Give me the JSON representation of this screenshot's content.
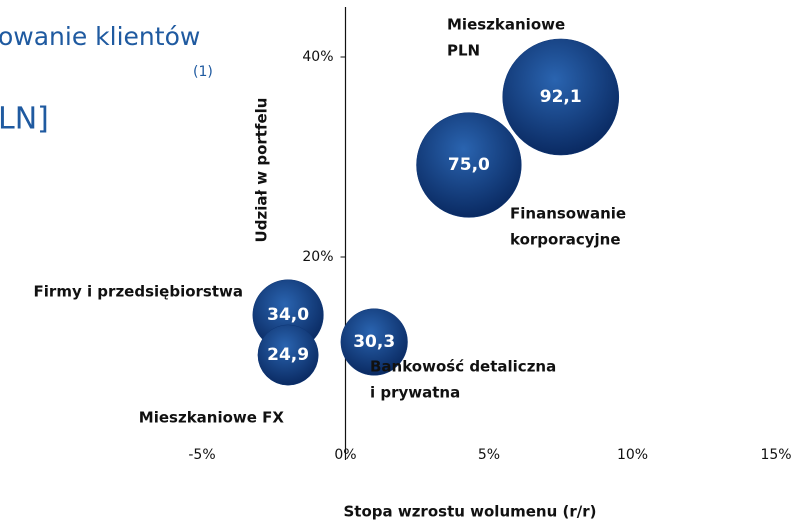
{
  "chart_data": {
    "type": "bubble",
    "title": "owanie klientów",
    "title_note": "(1)",
    "subtitle": "LN]",
    "xlabel": "Stopa wzrostu wolumenu (r/r)",
    "ylabel": "Udział w portfelu",
    "xlim": [
      -5,
      15
    ],
    "ylim": [
      0,
      45
    ],
    "xticks": [
      {
        "value": -5,
        "label": "-5%"
      },
      {
        "value": 0,
        "label": "0%"
      },
      {
        "value": 5,
        "label": "5%"
      },
      {
        "value": 10,
        "label": "10%"
      },
      {
        "value": 15,
        "label": "15%"
      }
    ],
    "yticks": [
      {
        "value": 20,
        "label": "20%"
      },
      {
        "value": 40,
        "label": "40%"
      }
    ],
    "color": "#0d3575",
    "points": [
      {
        "label": [
          "Mieszkaniowe",
          "PLN"
        ],
        "x": 7.5,
        "y": 36,
        "size": 92.1,
        "value_label": "92,1"
      },
      {
        "label": [
          "Finansowanie",
          "korporacyjne"
        ],
        "x": 4.3,
        "y": 29.2,
        "size": 75.0,
        "value_label": "75,0"
      },
      {
        "label": [
          "Firmy i przedsiębiorstwa"
        ],
        "x": -2.0,
        "y": 14.2,
        "size": 34.0,
        "value_label": "34,0"
      },
      {
        "label": [
          "Mieszkaniowe FX"
        ],
        "x": -2.0,
        "y": 10.2,
        "size": 24.9,
        "value_label": "24,9"
      },
      {
        "label": [
          "Bankowość detaliczna",
          "i prywatna"
        ],
        "x": 1.0,
        "y": 11.5,
        "size": 30.3,
        "value_label": "30,3"
      }
    ]
  }
}
